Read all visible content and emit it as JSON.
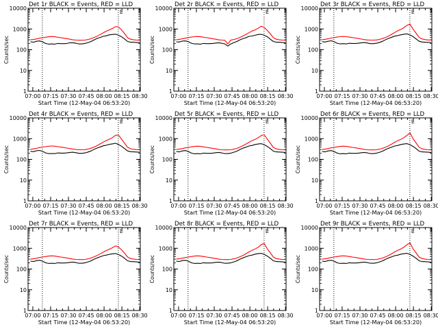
{
  "chart_data": {
    "type": "line",
    "layout": "3x3 grid",
    "y_scale": "log",
    "ylim": [
      1,
      10000
    ],
    "y_ticks": [
      "1",
      "10",
      "100",
      "1000",
      "10000"
    ],
    "ylabel": "Counts/sec",
    "x_ticks": [
      "07:00",
      "07:15",
      "07:30",
      "07:45",
      "08:00",
      "08:15",
      "08:30"
    ],
    "xlabel": "Start Time (12-May-04 06:53:20)",
    "series_colors": {
      "events": "#000000",
      "lld": "#ff0000"
    },
    "markers": {
      "vertical_dotted_lines_at": [
        "07:08",
        "08:12"
      ],
      "corner_mark": "L"
    },
    "panels": [
      {
        "title": "Det 1r BLACK = Events, RED = LLD",
        "series": [
          {
            "key": "events",
            "values": [
              240,
              230,
              255,
              265,
              240,
              200,
              185,
              190,
              185,
              200,
              195,
              195,
              200,
              215,
              215,
              205,
              190,
              190,
              200,
              220,
              250,
              300,
              350,
              390,
              440,
              470,
              520,
              540,
              560,
              500,
              420,
              330,
              250,
              230,
              230,
              220,
              220
            ]
          },
          {
            "key": "lld",
            "values": [
              300,
              310,
              330,
              360,
              380,
              400,
              420,
              430,
              420,
              400,
              380,
              360,
              340,
              320,
              300,
              290,
              285,
              285,
              290,
              310,
              340,
              390,
              450,
              540,
              650,
              780,
              900,
              1050,
              1300,
              1250,
              900,
              600,
              380,
              320,
              300,
              290,
              285
            ]
          }
        ]
      },
      {
        "title": "Det 2r BLACK = Events, RED = LLD",
        "series": [
          {
            "key": "events",
            "values": [
              240,
              235,
              260,
              265,
              245,
              205,
              190,
              190,
              185,
              200,
              195,
              195,
              200,
              210,
              215,
              205,
              190,
              150,
              190,
              220,
              250,
              300,
              340,
              380,
              440,
              460,
              500,
              540,
              550,
              500,
              420,
              320,
              250,
              230,
              230,
              220,
              215
            ]
          },
          {
            "key": "lld",
            "values": [
              300,
              315,
              335,
              360,
              385,
              405,
              425,
              430,
              420,
              400,
              380,
              360,
              340,
              320,
              300,
              290,
              285,
              190,
              290,
              310,
              340,
              390,
              460,
              550,
              660,
              790,
              900,
              1080,
              1350,
              1200,
              850,
              580,
              380,
              320,
              300,
              290,
              285
            ]
          }
        ]
      },
      {
        "title": "Det 3r BLACK = Events, RED = LLD",
        "series": [
          {
            "key": "events",
            "values": [
              245,
              235,
              255,
              270,
              245,
              205,
              190,
              195,
              190,
              205,
              200,
              200,
              205,
              215,
              220,
              210,
              195,
              195,
              205,
              225,
              255,
              305,
              350,
              400,
              450,
              480,
              520,
              560,
              580,
              510,
              430,
              330,
              255,
              235,
              230,
              225,
              220
            ]
          },
          {
            "key": "lld",
            "values": [
              305,
              315,
              335,
              365,
              385,
              405,
              425,
              435,
              425,
              405,
              385,
              365,
              345,
              325,
              305,
              295,
              290,
              290,
              295,
              315,
              345,
              395,
              460,
              560,
              680,
              820,
              950,
              1150,
              1500,
              1700,
              1000,
              620,
              390,
              330,
              305,
              295,
              290
            ]
          }
        ]
      },
      {
        "title": "Det 4r BLACK = Events, RED = LLD",
        "series": [
          {
            "key": "events",
            "values": [
              245,
              235,
              260,
              270,
              245,
              205,
              190,
              190,
              190,
              205,
              200,
              200,
              205,
              215,
              220,
              210,
              195,
              195,
              205,
              225,
              255,
              305,
              350,
              400,
              450,
              480,
              530,
              560,
              600,
              520,
              430,
              330,
              255,
              235,
              230,
              225,
              220
            ]
          },
          {
            "key": "lld",
            "values": [
              305,
              320,
              340,
              370,
              390,
              410,
              430,
              440,
              430,
              410,
              390,
              370,
              350,
              330,
              310,
              300,
              290,
              290,
              295,
              315,
              345,
              395,
              460,
              560,
              680,
              810,
              940,
              1120,
              1450,
              1500,
              950,
              600,
              385,
              325,
              305,
              295,
              290
            ]
          }
        ]
      },
      {
        "title": "Det 5r BLACK = Events, RED = LLD",
        "series": [
          {
            "key": "events",
            "values": [
              240,
              230,
              255,
              265,
              240,
              200,
              185,
              190,
              185,
              200,
              195,
              195,
              200,
              210,
              215,
              205,
              190,
              190,
              200,
              220,
              250,
              300,
              345,
              390,
              440,
              470,
              520,
              550,
              570,
              510,
              420,
              330,
              250,
              230,
              225,
              220,
              215
            ]
          },
          {
            "key": "lld",
            "values": [
              300,
              310,
              330,
              360,
              380,
              400,
              420,
              430,
              420,
              400,
              380,
              360,
              340,
              320,
              300,
              290,
              285,
              285,
              290,
              310,
              340,
              390,
              455,
              550,
              670,
              800,
              920,
              1100,
              1400,
              1550,
              950,
              600,
              380,
              320,
              300,
              290,
              285
            ]
          }
        ]
      },
      {
        "title": "Det 6r BLACK = Events, RED = LLD",
        "series": [
          {
            "key": "events",
            "values": [
              240,
              230,
              255,
              265,
              240,
              200,
              185,
              190,
              185,
              200,
              195,
              195,
              200,
              210,
              215,
              205,
              190,
              190,
              200,
              220,
              250,
              300,
              345,
              390,
              440,
              470,
              520,
              550,
              570,
              510,
              420,
              330,
              250,
              230,
              225,
              220,
              215
            ]
          },
          {
            "key": "lld",
            "values": [
              300,
              310,
              330,
              360,
              380,
              400,
              420,
              430,
              420,
              400,
              380,
              360,
              340,
              320,
              300,
              290,
              285,
              285,
              290,
              310,
              340,
              390,
              455,
              550,
              670,
              800,
              930,
              1120,
              1450,
              1900,
              1000,
              620,
              385,
              320,
              300,
              290,
              285
            ]
          }
        ]
      },
      {
        "title": "Det 7r BLACK = Events, RED = LLD",
        "series": [
          {
            "key": "events",
            "values": [
              240,
              230,
              255,
              265,
              240,
              200,
              185,
              190,
              185,
              200,
              195,
              195,
              200,
              210,
              215,
              205,
              190,
              190,
              200,
              220,
              250,
              300,
              345,
              390,
              440,
              470,
              510,
              540,
              560,
              500,
              420,
              330,
              250,
              230,
              225,
              220,
              215
            ]
          },
          {
            "key": "lld",
            "values": [
              300,
              310,
              330,
              360,
              380,
              400,
              420,
              430,
              420,
              400,
              380,
              360,
              340,
              320,
              300,
              290,
              285,
              285,
              290,
              310,
              340,
              390,
              450,
              540,
              650,
              780,
              900,
              1060,
              1300,
              1150,
              850,
              580,
              380,
              320,
              300,
              290,
              285
            ]
          }
        ]
      },
      {
        "title": "Det 8r BLACK = Events, RED = LLD",
        "series": [
          {
            "key": "events",
            "values": [
              240,
              230,
              255,
              265,
              240,
              200,
              185,
              190,
              185,
              200,
              195,
              195,
              200,
              210,
              215,
              205,
              190,
              190,
              200,
              220,
              250,
              300,
              345,
              390,
              440,
              470,
              520,
              550,
              570,
              510,
              420,
              330,
              250,
              230,
              225,
              220,
              215
            ]
          },
          {
            "key": "lld",
            "values": [
              300,
              310,
              330,
              360,
              380,
              400,
              420,
              430,
              420,
              400,
              380,
              360,
              340,
              320,
              300,
              290,
              285,
              285,
              290,
              310,
              340,
              390,
              455,
              550,
              670,
              800,
              930,
              1120,
              1500,
              1700,
              950,
              600,
              380,
              320,
              300,
              290,
              285
            ]
          }
        ]
      },
      {
        "title": "Det 9r BLACK = Events, RED = LLD",
        "series": [
          {
            "key": "events",
            "values": [
              240,
              230,
              255,
              265,
              240,
              200,
              185,
              190,
              185,
              200,
              195,
              195,
              200,
              210,
              215,
              205,
              190,
              190,
              200,
              220,
              250,
              300,
              345,
              390,
              440,
              470,
              520,
              550,
              570,
              510,
              420,
              330,
              250,
              230,
              225,
              220,
              215
            ]
          },
          {
            "key": "lld",
            "values": [
              300,
              310,
              330,
              360,
              380,
              400,
              420,
              430,
              420,
              400,
              380,
              360,
              340,
              320,
              300,
              290,
              285,
              285,
              290,
              310,
              340,
              390,
              455,
              550,
              670,
              800,
              940,
              1130,
              1500,
              1800,
              950,
              600,
              380,
              320,
              300,
              290,
              285
            ]
          }
        ]
      }
    ]
  }
}
